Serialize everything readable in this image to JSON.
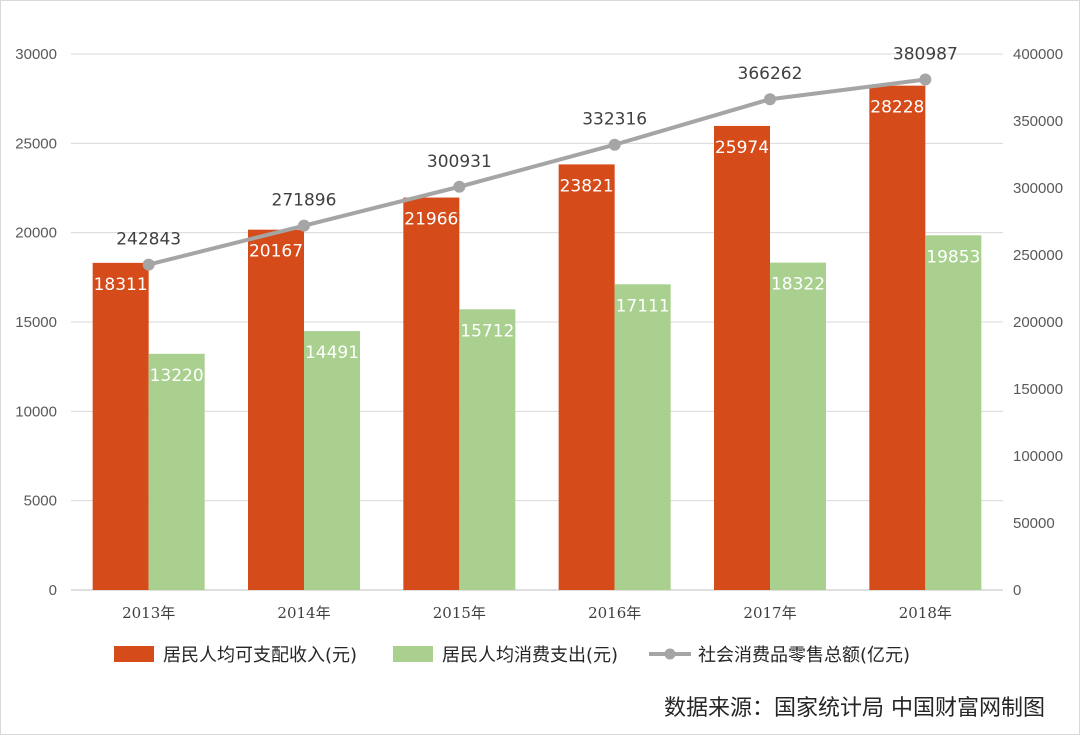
{
  "chart_data": {
    "type": "bar",
    "categories": [
      "2013年",
      "2014年",
      "2015年",
      "2016年",
      "2017年",
      "2018年"
    ],
    "series": [
      {
        "name": "居民人均可支配收入(元)",
        "kind": "bar",
        "axis": "left",
        "color": "#d54b1a",
        "values": [
          18311,
          20167,
          21966,
          23821,
          25974,
          28228
        ]
      },
      {
        "name": "居民人均消费支出(元)",
        "kind": "bar",
        "axis": "left",
        "color": "#a9d08e",
        "values": [
          13220,
          14491,
          15712,
          17111,
          18322,
          19853
        ]
      },
      {
        "name": "社会消费品零售总额(亿元)",
        "kind": "line",
        "axis": "right",
        "color": "#a5a5a5",
        "values": [
          242843,
          271896,
          300931,
          332316,
          366262,
          380987
        ]
      }
    ],
    "left_axis": {
      "min": 0,
      "max": 30000,
      "ticks": [
        "0",
        "5000",
        "10000",
        "15000",
        "20000",
        "25000",
        "30000"
      ]
    },
    "right_axis": {
      "min": 0,
      "max": 400000,
      "ticks": [
        "0",
        "50000",
        "100000",
        "150000",
        "200000",
        "250000",
        "300000",
        "350000",
        "400000"
      ]
    },
    "grid": true,
    "legend_position": "bottom",
    "source_note": "数据来源：国家统计局 中国财富网制图"
  }
}
